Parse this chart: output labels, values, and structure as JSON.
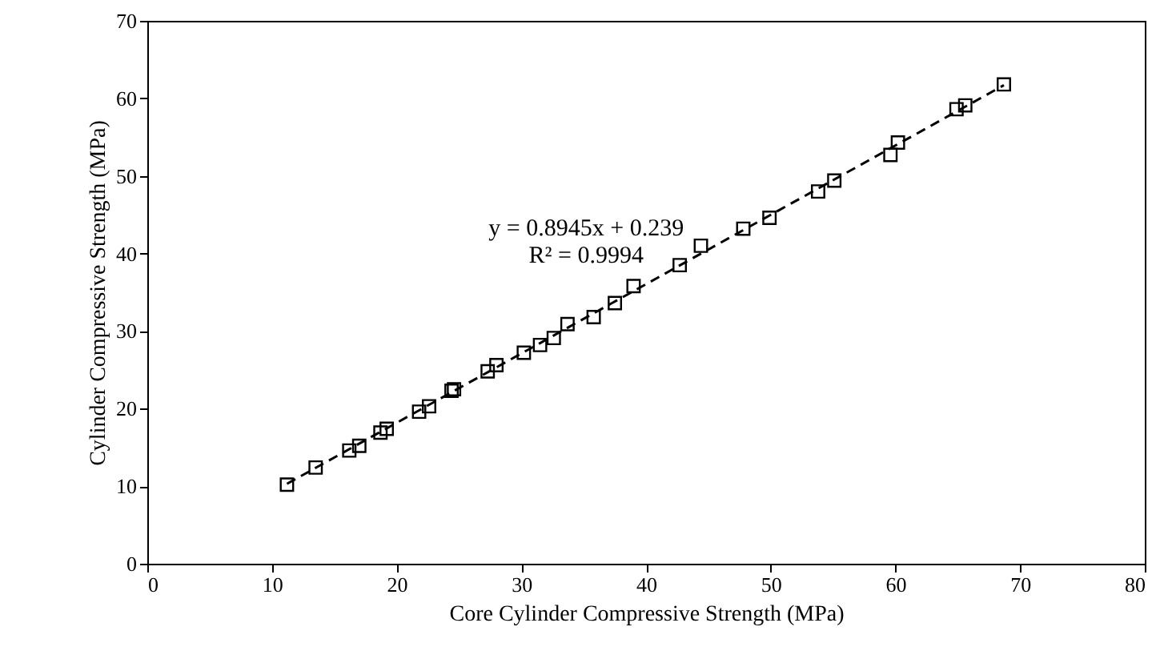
{
  "chart_data": {
    "type": "scatter",
    "xlabel": "Core Cylinder Compressive Strength (MPa)",
    "ylabel": "Cylinder Compressive Strength (MPa)",
    "xlim": [
      0,
      80
    ],
    "xticks": [
      0,
      10,
      20,
      30,
      40,
      50,
      60,
      70,
      80
    ],
    "ylim": [
      0,
      70
    ],
    "yticks": [
      0,
      10,
      20,
      30,
      40,
      50,
      60,
      70
    ],
    "grid": false,
    "annotations": [
      "y = 0.8945x + 0.239",
      "R² = 0.9994"
    ],
    "series": [
      {
        "color": "#000000",
        "marker": "square",
        "x": [
          11.2,
          13.5,
          16.2,
          17.0,
          18.7,
          19.2,
          21.8,
          22.6,
          24.4,
          24.6,
          27.3,
          28.0,
          30.2,
          31.5,
          32.6,
          33.7,
          35.8,
          37.5,
          39.0,
          42.7,
          44.4,
          47.8,
          49.9,
          53.8,
          55.1,
          59.6,
          60.2,
          64.9,
          65.6,
          68.7
        ],
        "values": [
          10.2,
          12.4,
          14.6,
          15.2,
          16.9,
          17.4,
          19.6,
          20.3,
          22.3,
          22.5,
          24.8,
          25.6,
          27.2,
          28.2,
          29.1,
          30.9,
          31.8,
          33.6,
          35.8,
          38.5,
          41.0,
          43.2,
          44.6,
          48.0,
          49.4,
          52.7,
          54.3,
          58.6,
          59.1,
          61.8
        ]
      },
      {
        "type": "line",
        "color": "#000000",
        "line_style": "dashed",
        "marker": "none",
        "x": [
          11.2,
          68.7
        ],
        "values": [
          10.3,
          61.7
        ]
      }
    ]
  }
}
